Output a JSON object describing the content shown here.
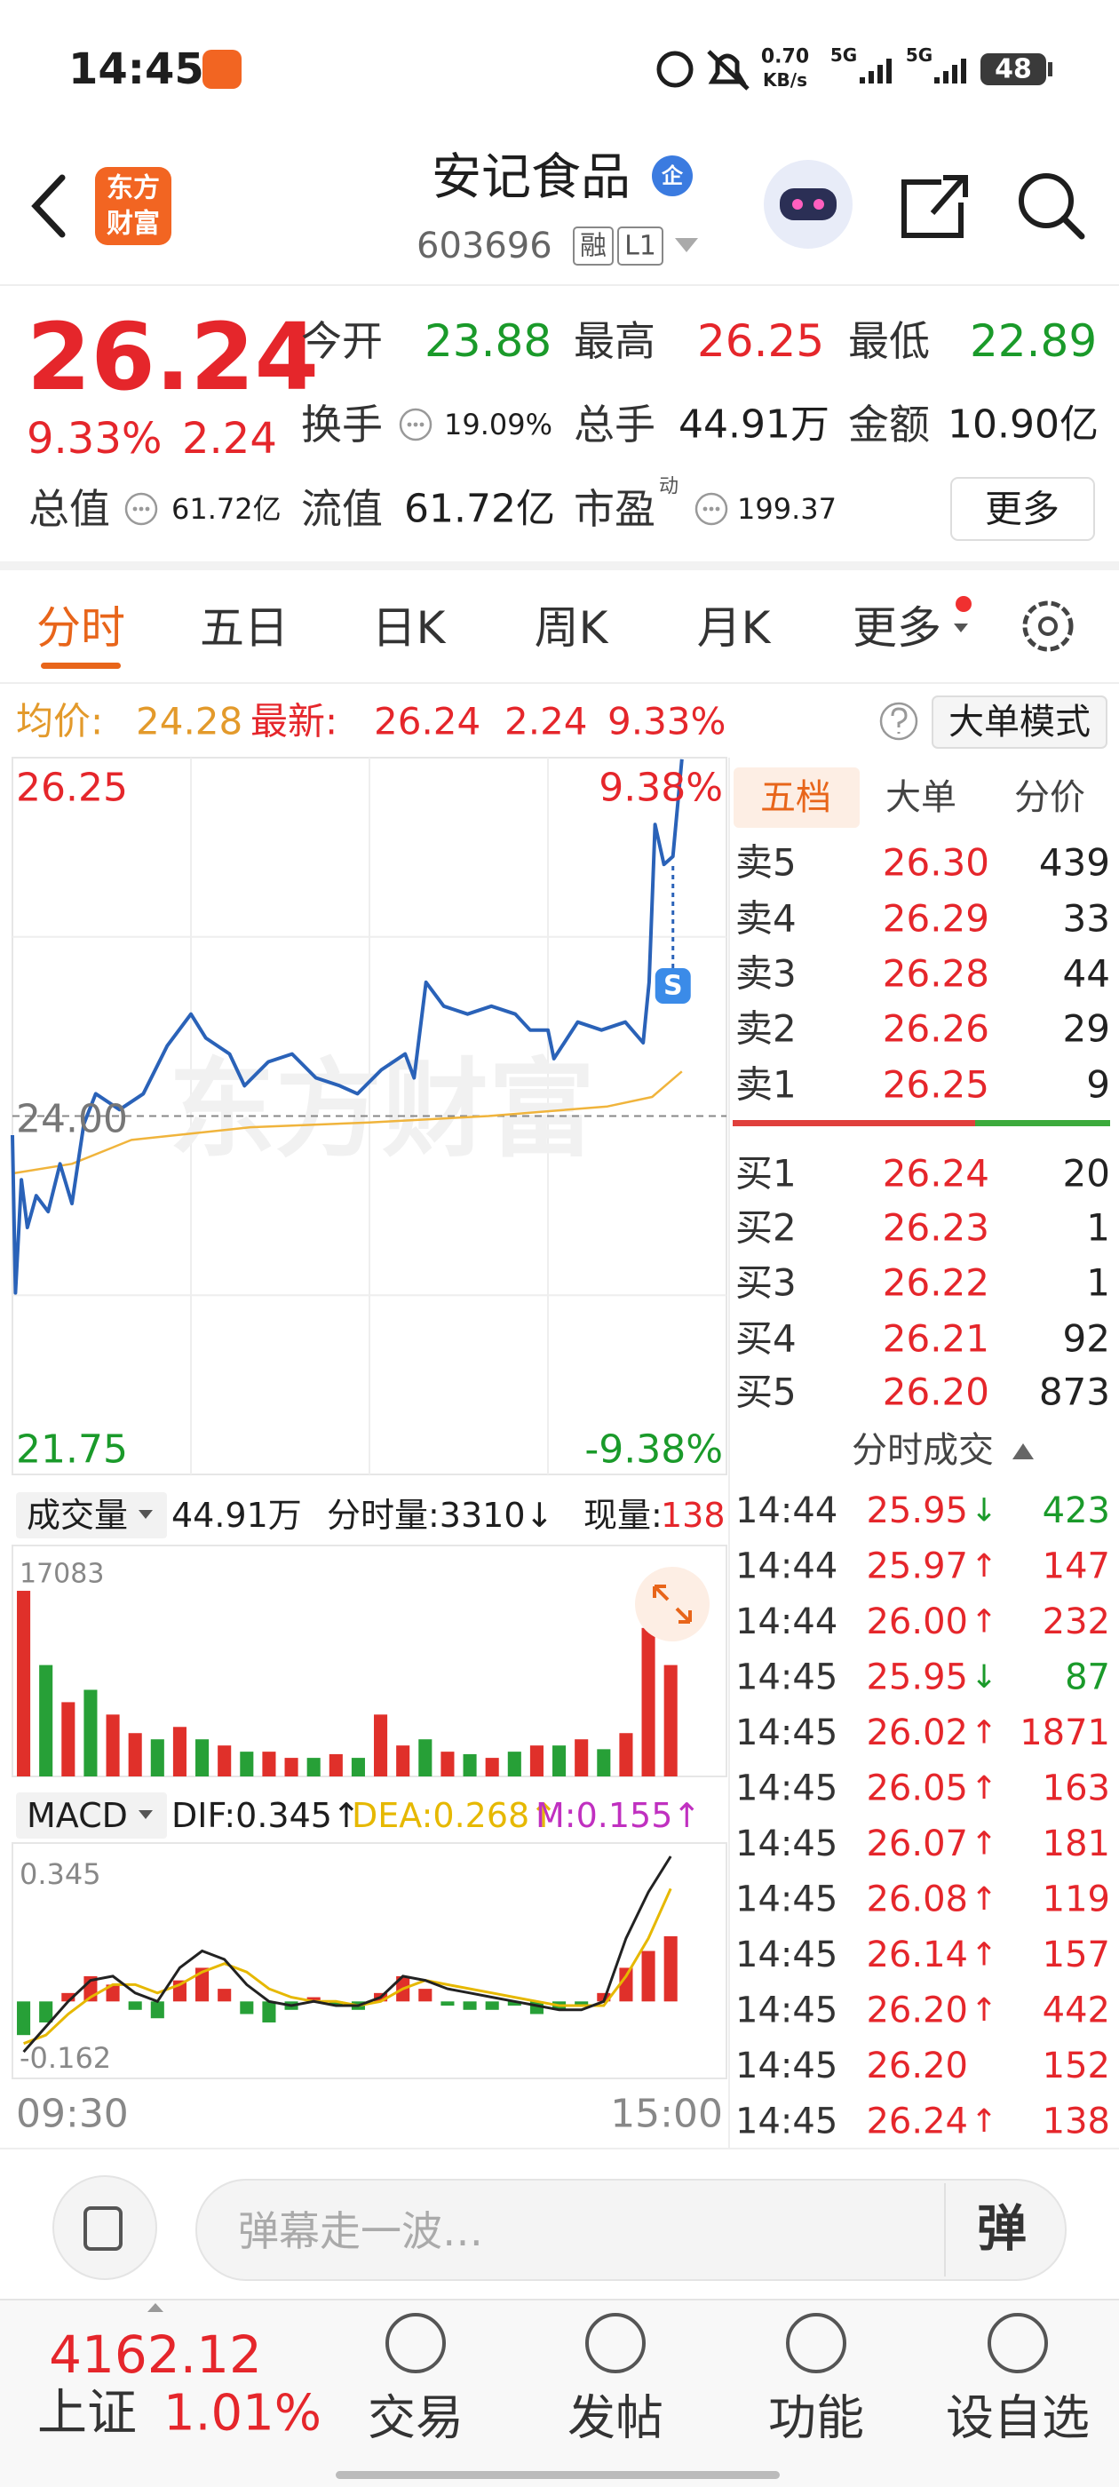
{
  "status_bar": {
    "time": "14:45",
    "net_speed": "0.70",
    "net_unit": "KB/s",
    "signal_1": "5G",
    "signal_2": "5G",
    "battery": "48"
  },
  "header": {
    "logo": [
      "东方",
      "财富"
    ],
    "name": "安记食品",
    "badge": "企",
    "code": "603696",
    "tags": [
      "融",
      "L1"
    ]
  },
  "quote": {
    "price": "26.24",
    "change_pct": "9.33%",
    "change": "2.24",
    "fields": [
      {
        "label": "今开",
        "value": "23.88"
      },
      {
        "label": "最高",
        "value": "26.25"
      },
      {
        "label": "最低",
        "value": "22.89"
      },
      {
        "label": "换手",
        "value": "19.09%"
      },
      {
        "label": "总手",
        "value": "44.91万"
      },
      {
        "label": "金额",
        "value": "10.90亿"
      },
      {
        "label": "总值",
        "value": "61.72亿"
      },
      {
        "label": "流值",
        "value": "61.72亿"
      },
      {
        "label": "市盈",
        "sup": "动",
        "value": "199.37"
      }
    ],
    "more": "更多"
  },
  "tabs": [
    "分时",
    "五日",
    "日K",
    "周K",
    "月K",
    "更多"
  ],
  "info_bar": {
    "avg_label": "均价:",
    "avg": "24.28",
    "last_label": "最新:",
    "last": "26.24",
    "change": "2.24",
    "change_pct": "9.33%",
    "mode_button": "大单模式"
  },
  "intraday": {
    "type": "line",
    "xlim": [
      "09:30",
      "15:00"
    ],
    "ylim": [
      21.75,
      26.25
    ],
    "ref_line": {
      "value": 24,
      "label": "24.00"
    },
    "pct_labels": [
      "9.38%",
      "-9.38%"
    ],
    "watermark": "东方财富",
    "marker": "S",
    "price_color": "#2a62b8",
    "avg_color": "#f0b43c",
    "x": [
      "09:30",
      "09:31",
      "09:33",
      "09:35",
      "09:38",
      "09:42",
      "09:46",
      "09:50",
      "09:54",
      "09:58",
      "10:06",
      "10:14",
      "10:22",
      "10:30",
      "10:35",
      "10:43",
      "10:48",
      "10:56",
      "11:04",
      "11:12",
      "11:20",
      "11:26",
      "13:04",
      "13:12",
      "13:15",
      "13:19",
      "13:25",
      "13:33",
      "13:41",
      "13:49",
      "13:54",
      "14:00",
      "14:02",
      "14:10",
      "14:18",
      "14:26",
      "14:32",
      "14:34",
      "14:36",
      "14:39",
      "14:42",
      "14:45"
    ],
    "price": [
      23.88,
      22.89,
      23.6,
      23.3,
      23.5,
      23.4,
      23.7,
      23.45,
      23.95,
      24.14,
      24.04,
      24.14,
      24.44,
      24.64,
      24.49,
      24.39,
      24.19,
      24.34,
      24.39,
      24.24,
      24.19,
      24.14,
      24.29,
      24.39,
      24.24,
      24.84,
      24.69,
      24.64,
      24.69,
      24.64,
      24.54,
      24.54,
      24.36,
      24.59,
      24.54,
      24.59,
      24.46,
      24.84,
      25.83,
      25.58,
      25.63,
      26.24
    ],
    "avg_x": [
      "09:30",
      "09:50",
      "10:10",
      "10:50",
      "13:00",
      "13:40",
      "14:20",
      "14:35",
      "14:45"
    ],
    "avg": [
      23.64,
      23.7,
      23.85,
      23.93,
      23.96,
      24.0,
      24.06,
      24.12,
      24.28
    ]
  },
  "book": {
    "tabs": [
      "五档",
      "大单",
      "分价"
    ],
    "sell": [
      {
        "label": "卖5",
        "price": "26.30",
        "volume": "439"
      },
      {
        "label": "卖4",
        "price": "26.29",
        "volume": "33"
      },
      {
        "label": "卖3",
        "price": "26.28",
        "volume": "44"
      },
      {
        "label": "卖2",
        "price": "26.26",
        "volume": "29"
      },
      {
        "label": "卖1",
        "price": "26.25",
        "volume": "9"
      }
    ],
    "buy": [
      {
        "label": "买1",
        "price": "26.24",
        "volume": "20"
      },
      {
        "label": "买2",
        "price": "26.23",
        "volume": "1"
      },
      {
        "label": "买3",
        "price": "26.22",
        "volume": "1"
      },
      {
        "label": "买4",
        "price": "26.21",
        "volume": "92"
      },
      {
        "label": "买5",
        "price": "26.20",
        "volume": "873"
      }
    ]
  },
  "trades": {
    "title": "分时成交",
    "rows": [
      {
        "time": "14:44",
        "price": "25.95",
        "arrow": "↓",
        "volume": "423"
      },
      {
        "time": "14:44",
        "price": "25.97",
        "arrow": "↑",
        "volume": "147"
      },
      {
        "time": "14:44",
        "price": "26.00",
        "arrow": "↑",
        "volume": "232"
      },
      {
        "time": "14:45",
        "price": "25.95",
        "arrow": "↓",
        "volume": "87"
      },
      {
        "time": "14:45",
        "price": "26.02",
        "arrow": "↑",
        "volume": "1871"
      },
      {
        "time": "14:45",
        "price": "26.05",
        "arrow": "↑",
        "volume": "163"
      },
      {
        "time": "14:45",
        "price": "26.07",
        "arrow": "↑",
        "volume": "181"
      },
      {
        "time": "14:45",
        "price": "26.08",
        "arrow": "↑",
        "volume": "119"
      },
      {
        "time": "14:45",
        "price": "26.14",
        "arrow": "↑",
        "volume": "157"
      },
      {
        "time": "14:45",
        "price": "26.20",
        "arrow": "↑",
        "volume": "442"
      },
      {
        "time": "14:45",
        "price": "26.20",
        "volume": "152"
      },
      {
        "time": "14:45",
        "price": "26.24",
        "arrow": "↑",
        "volume": "138"
      }
    ]
  },
  "volume": {
    "type": "bar",
    "header": {
      "title": "成交量",
      "total": "44.91万",
      "minute_volume": "分时量:3310↓",
      "now_label": "现量:",
      "now": "138"
    },
    "ylim": [
      0,
      17083
    ],
    "series": [
      {
        "color": "#e0302a",
        "values": [
          15000,
          null,
          6000,
          null,
          5000,
          3500,
          null,
          4000,
          null,
          2500,
          null,
          2000,
          1500,
          null,
          1800,
          null,
          5000,
          2500,
          null,
          2000,
          null,
          1500,
          null,
          2500,
          null,
          3000,
          null,
          3500,
          12000,
          9000
        ]
      },
      {
        "color": "#27a037",
        "values": [
          null,
          9000,
          null,
          7000,
          null,
          null,
          3000,
          null,
          3000,
          null,
          2000,
          null,
          null,
          1500,
          null,
          1500,
          null,
          null,
          3000,
          null,
          1800,
          null,
          2000,
          null,
          2500,
          null,
          2200,
          null,
          null,
          null
        ]
      }
    ]
  },
  "macd": {
    "type": "bar",
    "header": {
      "title": "MACD",
      "dif": "DIF:0.345↑",
      "dea": "DEA:0.268↑",
      "m": "M:0.155↑"
    },
    "ylim": [
      -0.162,
      0.345
    ],
    "up_color": "#e0302a",
    "down_color": "#27a037",
    "hist": [
      -0.08,
      -0.05,
      0.02,
      0.06,
      0.04,
      -0.02,
      -0.04,
      0.05,
      0.08,
      0.03,
      -0.03,
      -0.05,
      -0.02,
      0.01,
      -0.01,
      -0.02,
      0.02,
      0.06,
      0.03,
      -0.01,
      -0.02,
      -0.02,
      -0.01,
      -0.03,
      -0.02,
      -0.01,
      0.02,
      0.08,
      0.12,
      0.155
    ],
    "dif_color": "#222222",
    "dif_values": [
      -0.12,
      -0.06,
      0.0,
      0.05,
      0.06,
      0.02,
      0.0,
      0.08,
      0.12,
      0.1,
      0.04,
      0.0,
      -0.01,
      0.0,
      -0.01,
      -0.01,
      0.01,
      0.06,
      0.05,
      0.03,
      0.02,
      0.01,
      0.0,
      -0.01,
      -0.02,
      -0.02,
      0.0,
      0.15,
      0.26,
      0.345
    ],
    "dea_color": "#e6b800",
    "dea_values": [
      -0.1,
      -0.08,
      -0.03,
      0.01,
      0.04,
      0.04,
      0.02,
      0.04,
      0.07,
      0.09,
      0.07,
      0.03,
      0.01,
      0.0,
      0.0,
      -0.01,
      0.0,
      0.03,
      0.05,
      0.04,
      0.03,
      0.02,
      0.01,
      0.0,
      -0.01,
      -0.01,
      -0.01,
      0.06,
      0.15,
      0.268
    ]
  },
  "comment_bar": {
    "placeholder": "弹幕走一波…",
    "button": "弹"
  },
  "nav": {
    "index": {
      "value": "4162.12",
      "name": "上证",
      "change": "1.01%"
    },
    "items": [
      "交易",
      "发帖",
      "功能",
      "设自选"
    ]
  }
}
